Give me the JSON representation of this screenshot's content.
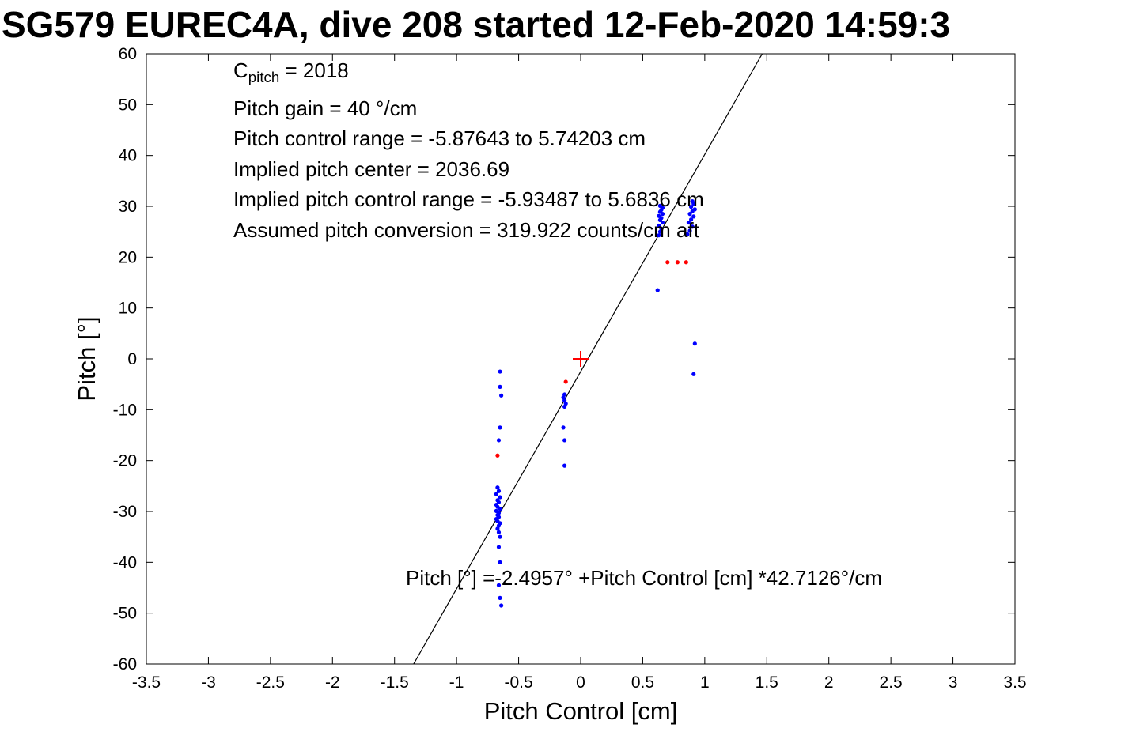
{
  "chart_data": {
    "type": "scatter",
    "title": "SG579 EUREC4A, dive 208 started 12-Feb-2020 14:59:3",
    "xlabel": "Pitch Control [cm]",
    "ylabel": "Pitch [°]",
    "xlim": [
      -3.5,
      3.5
    ],
    "ylim": [
      -60,
      60
    ],
    "xtick_labels": [
      "-3.5",
      "-3",
      "-2.5",
      "-2",
      "-1.5",
      "-1",
      "-0.5",
      "0",
      "0.5",
      "1",
      "1.5",
      "2",
      "2.5",
      "3",
      "3.5"
    ],
    "ytick_labels": [
      "-60",
      "-50",
      "-40",
      "-30",
      "-20",
      "-10",
      "0",
      "10",
      "20",
      "30",
      "40",
      "50",
      "60"
    ],
    "grid": false,
    "legend": "none",
    "annotations": {
      "c_pitch": {
        "base": "C",
        "sub": "pitch",
        "rest": " = 2018"
      },
      "lines": [
        "Pitch gain = 40 °/cm",
        "Pitch control range = -5.87643 to 5.74203 cm",
        "Implied pitch center = 2036.69",
        "Implied pitch control range = -5.93487 to 5.6836 cm",
        "Assumed pitch conversion = 319.922 counts/cm aft"
      ],
      "fit_equation": "Pitch [°] =-2.4957° +Pitch Control [cm] *42.7126°/cm"
    },
    "fit_line": {
      "slope": 42.7126,
      "intercept": -2.4957,
      "color": "#000000"
    },
    "colors": {
      "observations": "#0000ff",
      "flagged": "#ff0000",
      "axes": "#000000"
    },
    "series": [
      {
        "name": "pitch-observations-blue",
        "marker": "dot",
        "color": "#0000ff",
        "points": [
          [
            -0.65,
            -2.5
          ],
          [
            -0.65,
            -5.5
          ],
          [
            -0.64,
            -7.2
          ],
          [
            -0.65,
            -13.5
          ],
          [
            -0.66,
            -16
          ],
          [
            -0.67,
            -25.3
          ],
          [
            -0.66,
            -26
          ],
          [
            -0.68,
            -26.6
          ],
          [
            -0.65,
            -27.2
          ],
          [
            -0.67,
            -27.8
          ],
          [
            -0.66,
            -28.2
          ],
          [
            -0.68,
            -28.7
          ],
          [
            -0.67,
            -29.1
          ],
          [
            -0.65,
            -29.5
          ],
          [
            -0.68,
            -29.9
          ],
          [
            -0.66,
            -30.3
          ],
          [
            -0.67,
            -30.7
          ],
          [
            -0.66,
            -31.1
          ],
          [
            -0.68,
            -31.5
          ],
          [
            -0.67,
            -31.9
          ],
          [
            -0.65,
            -32.3
          ],
          [
            -0.66,
            -32.8
          ],
          [
            -0.67,
            -33.4
          ],
          [
            -0.66,
            -34.1
          ],
          [
            -0.65,
            -35
          ],
          [
            -0.66,
            -37
          ],
          [
            -0.65,
            -40
          ],
          [
            -0.66,
            -44.5
          ],
          [
            -0.65,
            -47
          ],
          [
            -0.64,
            -48.5
          ],
          [
            -0.13,
            -7
          ],
          [
            -0.14,
            -7.6
          ],
          [
            -0.13,
            -8.2
          ],
          [
            -0.12,
            -8.8
          ],
          [
            -0.13,
            -9.4
          ],
          [
            -0.14,
            -13.5
          ],
          [
            -0.13,
            -16
          ],
          [
            -0.13,
            -21
          ],
          [
            0.62,
            13.5
          ],
          [
            0.63,
            24.3
          ],
          [
            0.64,
            25
          ],
          [
            0.65,
            25.6
          ],
          [
            0.63,
            26.2
          ],
          [
            0.66,
            26.8
          ],
          [
            0.64,
            27.3
          ],
          [
            0.65,
            27.7
          ],
          [
            0.63,
            28.1
          ],
          [
            0.66,
            28.5
          ],
          [
            0.64,
            28.9
          ],
          [
            0.65,
            29.3
          ],
          [
            0.66,
            29.7
          ],
          [
            0.64,
            30.1
          ],
          [
            0.86,
            24.5
          ],
          [
            0.88,
            25.2
          ],
          [
            0.9,
            26
          ],
          [
            0.87,
            26.8
          ],
          [
            0.89,
            27.4
          ],
          [
            0.91,
            28
          ],
          [
            0.88,
            28.5
          ],
          [
            0.9,
            29
          ],
          [
            0.92,
            29.4
          ],
          [
            0.89,
            29.9
          ],
          [
            0.91,
            30.5
          ],
          [
            0.9,
            31
          ],
          [
            0.92,
            3
          ],
          [
            0.91,
            -3
          ]
        ]
      },
      {
        "name": "flagged-observations-red",
        "marker": "dot",
        "color": "#ff0000",
        "points": [
          [
            -0.67,
            -19
          ],
          [
            -0.12,
            -4.5
          ],
          [
            0.7,
            19
          ],
          [
            0.78,
            19
          ],
          [
            0.85,
            19
          ]
        ]
      },
      {
        "name": "implied-center-marker",
        "marker": "plus",
        "color": "#ff0000",
        "points": [
          [
            0,
            0
          ]
        ]
      }
    ]
  }
}
